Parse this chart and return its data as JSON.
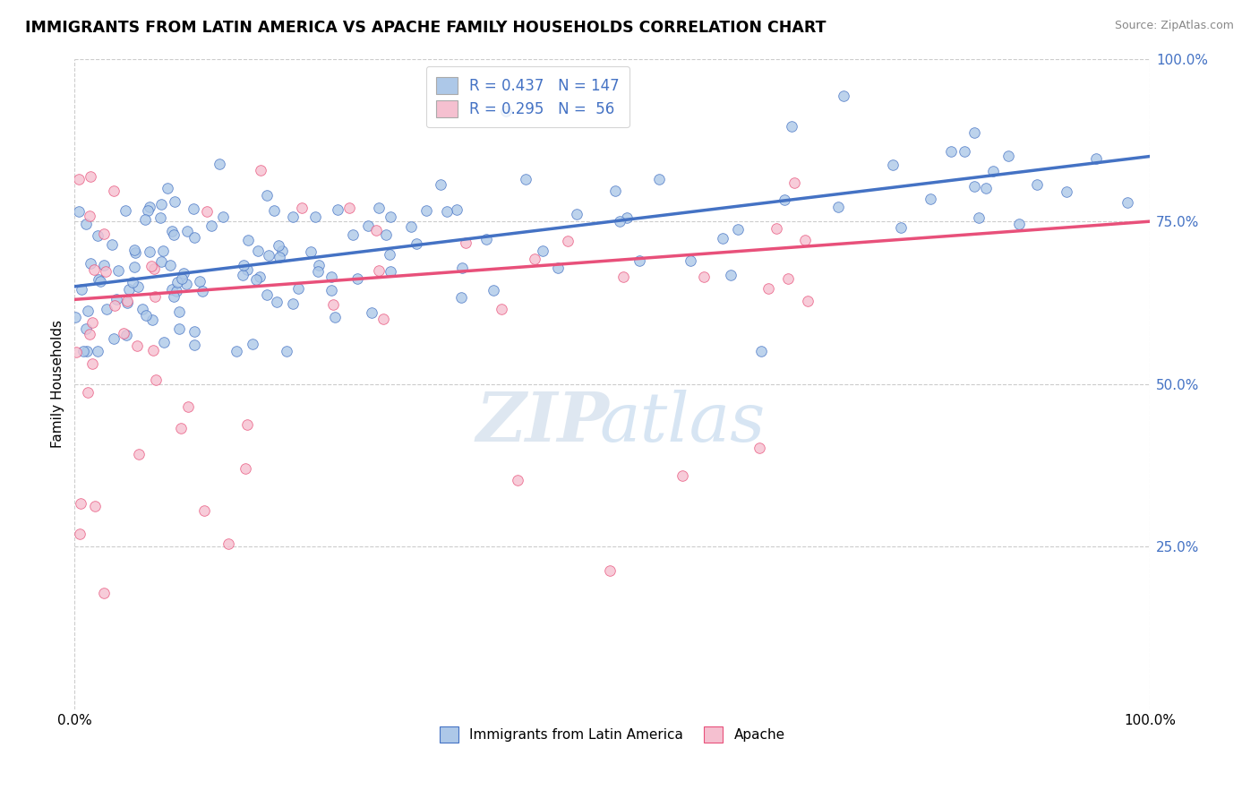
{
  "title": "IMMIGRANTS FROM LATIN AMERICA VS APACHE FAMILY HOUSEHOLDS CORRELATION CHART",
  "source": "Source: ZipAtlas.com",
  "ylabel": "Family Households",
  "legend_label1": "Immigrants from Latin America",
  "legend_label2": "Apache",
  "R1": 0.437,
  "N1": 147,
  "R2": 0.295,
  "N2": 56,
  "color_blue": "#adc8e8",
  "color_pink": "#f5c0d0",
  "line_color_blue": "#4472C4",
  "line_color_pink": "#e8507a",
  "xlim": [
    0,
    100
  ],
  "ylim": [
    0,
    100
  ],
  "yticks": [
    25,
    50,
    75,
    100
  ],
  "ytick_labels": [
    "25.0%",
    "50.0%",
    "75.0%",
    "100.0%"
  ]
}
